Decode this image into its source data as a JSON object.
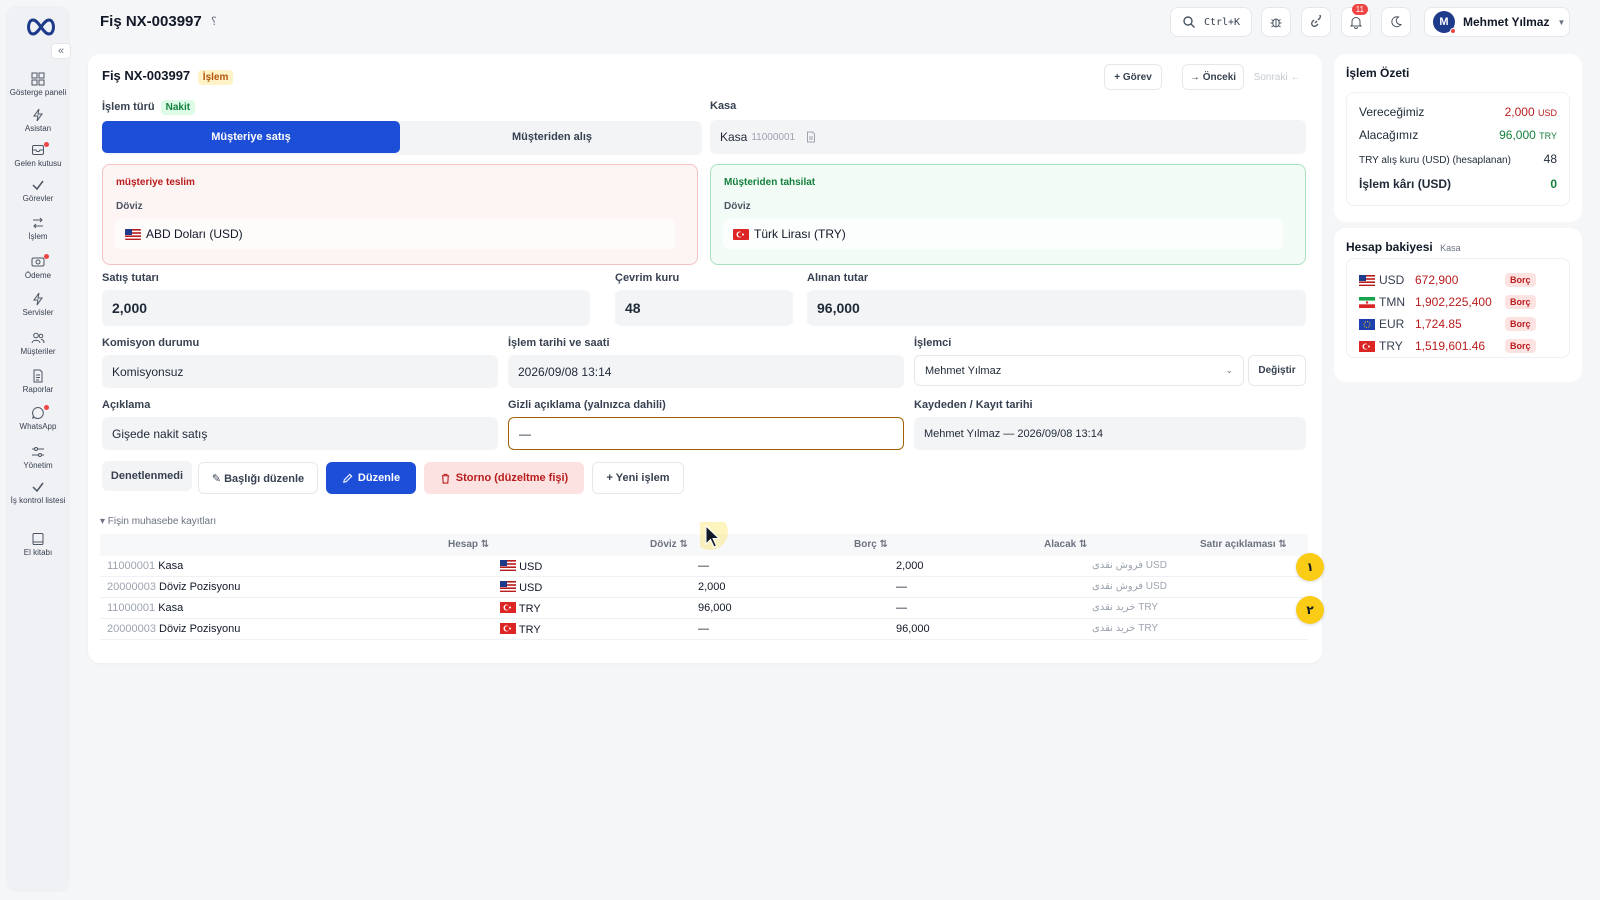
{
  "sidebar": {
    "collapse": "«",
    "items": [
      {
        "label": "Gösterge paneli",
        "icon": "dashboard-icon"
      },
      {
        "label": "Asistan",
        "icon": "bolt-icon"
      },
      {
        "label": "Gelen kutusu",
        "icon": "inbox-icon"
      },
      {
        "label": "Görevler",
        "icon": "check-icon"
      },
      {
        "label": "İşlem",
        "icon": "exchange-icon"
      },
      {
        "label": "Ödeme",
        "icon": "cash-icon"
      },
      {
        "label": "Servisler",
        "icon": "bolt-icon"
      },
      {
        "label": "Müşteriler",
        "icon": "users-icon"
      },
      {
        "label": "Raporlar",
        "icon": "report-icon"
      },
      {
        "label": "WhatsApp",
        "icon": "whatsapp-icon"
      },
      {
        "label": "Yönetim",
        "icon": "sliders-icon"
      },
      {
        "label": "İş kontrol listesi",
        "icon": "checklist-icon"
      },
      {
        "label": "El kitabı",
        "icon": "book-icon"
      }
    ]
  },
  "topbar": {
    "title": "Fiş NX-003997",
    "title_mark": "؟",
    "shortcut": "Ctrl+K",
    "notif_count": "11",
    "user_initial": "M",
    "user_name": "Mehmet Yılmaz"
  },
  "card": {
    "title": "Fiş NX-003997",
    "badge": "İşlem",
    "task_btn": "+ Görev",
    "prev_btn": "→ Önceki",
    "next_btn": "Sonraki ←",
    "type_label": "İşlem türü",
    "type_badge": "Nakit",
    "seg_active": "Müşteriye satış",
    "seg_idle": "Müşteriden alış",
    "kasa_label": "Kasa",
    "kasa_value": "Kasa",
    "kasa_code": "11000001",
    "deliver": {
      "title": "müşteriye teslim",
      "sub": "Döviz",
      "value": "ABD Doları (USD)"
    },
    "collect": {
      "title": "Müşteriden tahsilat",
      "sub": "Döviz",
      "value": "Türk Lirası (TRY)"
    },
    "sale_label": "Satış tutarı",
    "sale_value": "2,000",
    "rate_label": "Çevrim kuru",
    "rate_value": "48",
    "received_label": "Alınan tutar",
    "received_value": "96,000",
    "commission_label": "Komisyon durumu",
    "commission_value": "Komisyonsuz",
    "datetime_label": "İşlem tarihi ve saati",
    "datetime_value": "2026/09/08 13:14",
    "operator_label": "İşlemci",
    "operator_value": "Mehmet Yılmaz",
    "change_btn": "Değiştir",
    "desc_label": "Açıklama",
    "desc_value": "Gişede nakit satış",
    "hidden_label": "Gizli açıklama (yalnızca dahili)",
    "hidden_value": "—",
    "recorder_label": "Kaydeden / Kayıt tarihi",
    "recorder_value": "Mehmet Yılmaz — 2026/09/08 13:14",
    "actions": {
      "unaudited": "Denetlenmedi",
      "edit_header": "✎ Başlığı düzenle",
      "edit": "Düzenle",
      "storno": "Storno (düzeltme fişi)",
      "new": "+ Yeni işlem"
    },
    "ledger_toggle": "▾ Fişin muhasebe kayıtları"
  },
  "ledger": {
    "headers": {
      "account": "Hesap ⇅",
      "currency": "Döviz ⇅",
      "debit": "Borç ⇅",
      "credit": "Alacak ⇅",
      "line_desc": "Satır açıklaması ⇅"
    },
    "rows": [
      {
        "code": "11000001",
        "name": "Kasa",
        "currency": "USD",
        "flag": "us",
        "debit": "—",
        "credit": "2,000",
        "desc": "فروش نقدی USD"
      },
      {
        "code": "20000003",
        "name": "Döviz Pozisyonu",
        "currency": "USD",
        "flag": "us",
        "debit": "2,000",
        "credit": "—",
        "desc": "فروش نقدی USD"
      },
      {
        "code": "11000001",
        "name": "Kasa",
        "currency": "TRY",
        "flag": "tr",
        "debit": "96,000",
        "credit": "—",
        "desc": "خرید نقدی TRY"
      },
      {
        "code": "20000003",
        "name": "Döviz Pozisyonu",
        "currency": "TRY",
        "flag": "tr",
        "debit": "—",
        "credit": "96,000",
        "desc": "خرید نقدی TRY"
      }
    ],
    "markers": [
      "١",
      "٢"
    ]
  },
  "summary": {
    "title": "İşlem Özeti",
    "give_label": "Vereceğimiz",
    "give_value": "2,000",
    "give_unit": "USD",
    "take_label": "Alacağımız",
    "take_value": "96,000",
    "take_unit": "TRY",
    "rate_label": "TRY alış kuru (USD) (hesaplanan)",
    "rate_value": "48",
    "profit_label": "İşlem kârı (USD)",
    "profit_value": "0"
  },
  "balance": {
    "title": "Hesap bakiyesi",
    "sub": "Kasa",
    "rows": [
      {
        "cur": "USD",
        "flag": "us",
        "amount": "672,900",
        "status": "Borç"
      },
      {
        "cur": "TMN",
        "flag": "ir",
        "amount": "1,902,225,400",
        "status": "Borç"
      },
      {
        "cur": "EUR",
        "flag": "eu",
        "amount": "1,724.85",
        "status": "Borç"
      },
      {
        "cur": "TRY",
        "flag": "tr",
        "amount": "1,519,601.46",
        "status": "Borç"
      }
    ]
  },
  "colors": {
    "primary": "#1d4ed8",
    "danger": "#b91c1c",
    "success": "#15803d",
    "marker": "#facc15"
  }
}
